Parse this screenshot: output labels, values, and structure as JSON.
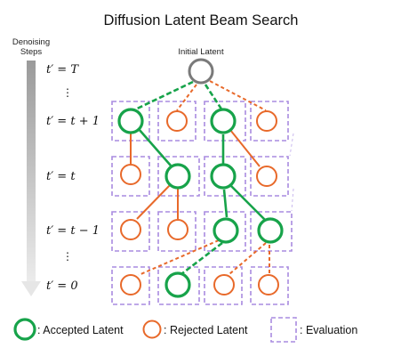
{
  "title": "Diffusion Latent Beam Search",
  "axis": {
    "label_line1": "Denoising",
    "label_line2": "Steps"
  },
  "initial_label": "Initial Latent",
  "rows": [
    {
      "label": "t′ = T"
    },
    {
      "label": "t′ = t + 1"
    },
    {
      "label": "t′ = t"
    },
    {
      "label": "t′ = t − 1"
    },
    {
      "label": "t′ = 0"
    }
  ],
  "legend": {
    "accepted": ": Accepted Latent",
    "rejected": ": Rejected Latent",
    "evaluation": ": Evaluation"
  },
  "colors": {
    "accepted": "#17a34a",
    "rejected": "#e8692a",
    "initial": "#7a7a7a",
    "evaluation": "#a98be0",
    "arrow": "#c8c8c8"
  }
}
